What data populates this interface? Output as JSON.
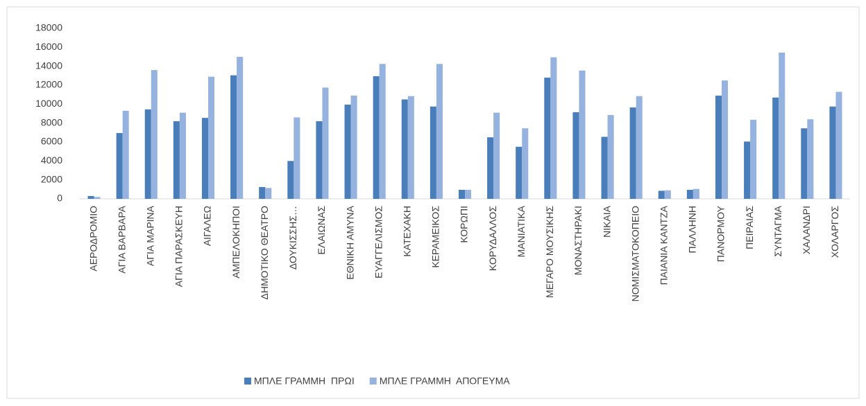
{
  "chart_data": {
    "type": "bar",
    "categories": [
      "ΑΕΡΟΔΡΟΜΙΟ",
      "ΑΓΙΑ ΒΑΡΒΑΡΑ",
      "ΑΓΙΑ ΜΑΡΙΝΑ",
      "ΑΓΙΑ ΠΑΡΑΣΚΕΥΗ",
      "ΑΙΓΑΛΕΩ",
      "ΑΜΠΕΛΟΚΗΠΟΙ",
      "ΔΗΜΟΤΙΚΟ ΘΕΑΤΡΟ",
      "ΔΟΥΚΙΣΣΗΣ…",
      "ΕΛΑΙΩΝΑΣ",
      "ΕΘΝΙΚΗ ΑΜΥΝΑ",
      "ΕΥΑΓΓΕΛΙΣΜΟΣ",
      "ΚΑΤΕΧΑΚΗ",
      "ΚΕΡΑΜΕΙΚΟΣ",
      "ΚΟΡΩΠΙ",
      "ΚΟΡΥΔΑΛΛΟΣ",
      "ΜΑΝΙΑΤΙΚΑ",
      "ΜΕΓΑΡΟ ΜΟΥΣΙΚΗΣ",
      "ΜΟΝΑΣΤΗΡΑΚΙ",
      "ΝΙΚΑΙΑ",
      "ΝΟΜΙΣΜΑΤΟΚΟΠΕΙΟ",
      "ΠΑΙΑΝΙΑ ΚΑΝΤΖΑ",
      "ΠΑΛΛΗΝΗ",
      "ΠΑΝΟΡΜΟΥ",
      "ΠΕΙΡΑΙΑΣ",
      "ΣΥΝΤΑΓΜΑ",
      "ΧΑΛΑΝΔΡΙ",
      "ΧΟΛΑΡΓΟΣ"
    ],
    "series": [
      {
        "name": "ΜΠΛΕ ΓΡΑΜΜΗ  ΠΡΩΙ",
        "color": "#4a7ebb",
        "values": [
          300,
          6950,
          9450,
          8200,
          8550,
          13050,
          1250,
          4000,
          8200,
          9950,
          12950,
          10500,
          9750,
          950,
          6500,
          5500,
          12800,
          9150,
          6550,
          9650,
          850,
          950,
          10900,
          6050,
          10700,
          7450,
          9750
        ]
      },
      {
        "name": "ΜΠΛΕ ΓΡΑΜΜΗ  ΑΠΟΓΕΥΜΑ",
        "color": "#95b3de",
        "values": [
          200,
          9300,
          13600,
          9100,
          12900,
          15000,
          1150,
          8600,
          11750,
          10900,
          14250,
          10850,
          14250,
          950,
          9100,
          7450,
          14950,
          13550,
          8850,
          10850,
          900,
          1050,
          12500,
          8350,
          15450,
          8400,
          11300
        ]
      }
    ],
    "ylim": [
      0,
      18000
    ],
    "yticks": [
      0,
      2000,
      4000,
      6000,
      8000,
      10000,
      12000,
      14000,
      16000,
      18000
    ],
    "legend": "bottom"
  }
}
